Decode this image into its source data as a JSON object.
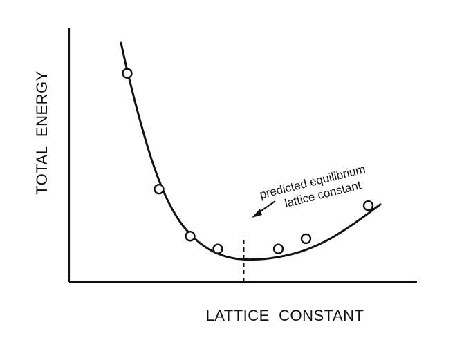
{
  "chart_data": {
    "type": "line",
    "xlabel": "LATTICE  CONSTANT",
    "ylabel": "TOTAL  ENERGY",
    "xlim": [
      0,
      10
    ],
    "ylim": [
      0,
      10
    ],
    "grid": false,
    "legend": "none",
    "curve": {
      "x": [
        1.5,
        1.7,
        2.0,
        2.4,
        2.8,
        3.2,
        3.6,
        4.0,
        4.4,
        4.8,
        5.2,
        5.6,
        6.0,
        6.4,
        6.8,
        7.2,
        7.6,
        8.0,
        8.4,
        8.8,
        9.0
      ],
      "y": [
        9.4,
        8.2,
        6.6,
        4.75,
        3.35,
        2.38,
        1.75,
        1.32,
        1.06,
        0.92,
        0.88,
        0.9,
        0.97,
        1.08,
        1.24,
        1.46,
        1.74,
        2.08,
        2.45,
        2.85,
        3.05
      ]
    },
    "series": [
      {
        "marker": "open-circle",
        "x": [
          1.68,
          2.6,
          3.5,
          4.3,
          6.05,
          6.85,
          8.65
        ],
        "y": [
          8.2,
          3.65,
          1.8,
          1.3,
          1.3,
          1.7,
          3.0
        ]
      }
    ],
    "equilibrium": {
      "x": 5.05,
      "y": 0.88
    },
    "annotation": {
      "lines": [
        "predicted equilibrium",
        "lattice constant"
      ]
    }
  }
}
